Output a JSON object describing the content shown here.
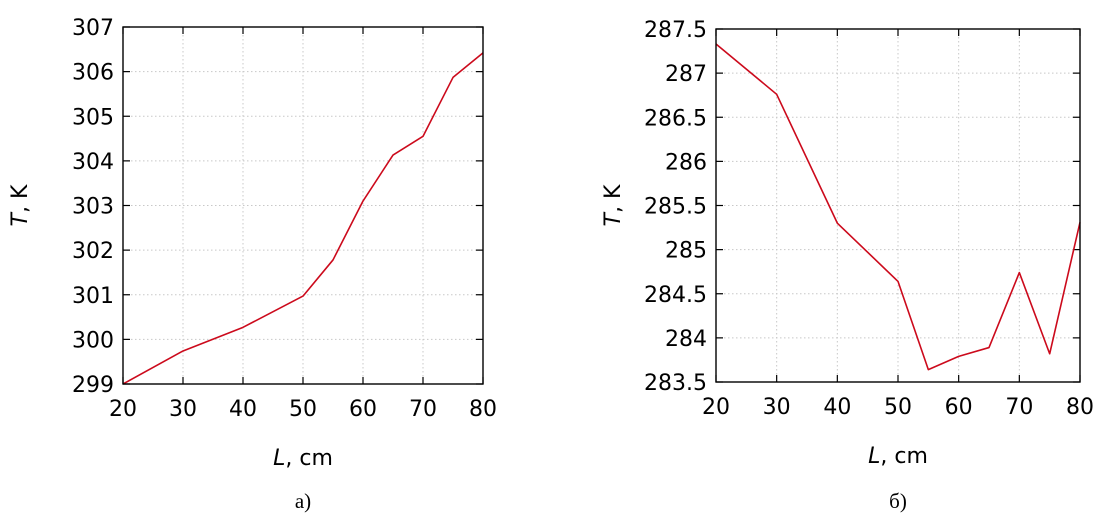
{
  "chart_data": [
    {
      "type": "line",
      "caption": "а)",
      "xlabel_italic": "L",
      "xlabel_rest": ", cm",
      "ylabel_italic": "T",
      "ylabel_rest": ", K",
      "xlim": [
        20,
        80
      ],
      "ylim": [
        299,
        307
      ],
      "xticks": [
        "20",
        "30",
        "40",
        "50",
        "60",
        "70",
        "80"
      ],
      "yticks": [
        "299",
        "300",
        "301",
        "302",
        "303",
        "304",
        "305",
        "306",
        "307"
      ],
      "grid": true,
      "line_color": "#cc0a1c",
      "series": [
        {
          "x": [
            20,
            30,
            40,
            50,
            55,
            60,
            65,
            70,
            75,
            80
          ],
          "values": [
            299.0,
            299.74,
            300.27,
            300.97,
            301.78,
            303.1,
            304.13,
            304.55,
            305.87,
            306.42
          ]
        }
      ]
    },
    {
      "type": "line",
      "caption": "б)",
      "xlabel_italic": "L",
      "xlabel_rest": ", cm",
      "ylabel_italic": "T",
      "ylabel_rest": ", K",
      "xlim": [
        20,
        80
      ],
      "ylim": [
        283.5,
        287.5
      ],
      "xticks": [
        "20",
        "30",
        "40",
        "50",
        "60",
        "70",
        "80"
      ],
      "yticks": [
        "283.5",
        "284",
        "284.5",
        "285",
        "285.5",
        "286",
        "286.5",
        "287",
        "287.5"
      ],
      "grid": true,
      "line_color": "#cc0a1c",
      "series": [
        {
          "x": [
            20,
            30,
            40,
            50,
            55,
            60,
            65,
            70,
            75,
            80
          ],
          "values": [
            287.33,
            286.76,
            285.3,
            284.64,
            283.64,
            283.79,
            283.89,
            284.74,
            283.82,
            285.31
          ]
        }
      ]
    }
  ]
}
